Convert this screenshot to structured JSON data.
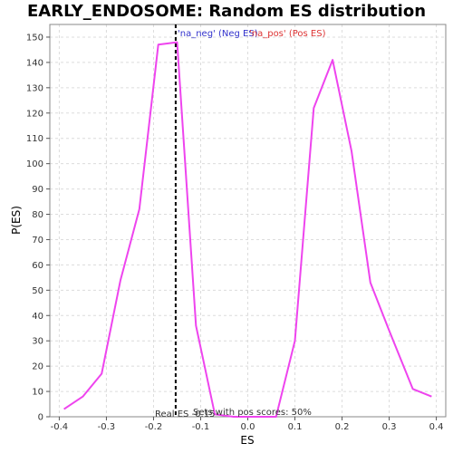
{
  "chart_data": {
    "type": "line",
    "title": "EARLY_ENDOSOME: Random ES distribution",
    "xlabel": "ES",
    "ylabel": "P(ES)",
    "xlim": [
      -0.42,
      0.42
    ],
    "ylim": [
      0,
      155
    ],
    "xticks": [
      -0.4,
      -0.3,
      -0.2,
      -0.1,
      0.0,
      0.1,
      0.2,
      0.3,
      0.4
    ],
    "xtick_labels": [
      "-0.4",
      "-0.3",
      "-0.2",
      "-0.1",
      "0.0",
      "0.1",
      "0.2",
      "0.3",
      "0.4"
    ],
    "yticks": [
      0,
      10,
      20,
      30,
      40,
      50,
      60,
      70,
      80,
      90,
      100,
      110,
      120,
      130,
      140,
      150
    ],
    "ytick_labels": [
      "0",
      "10",
      "20",
      "30",
      "40",
      "50",
      "60",
      "70",
      "80",
      "90",
      "100",
      "110",
      "120",
      "130",
      "140",
      "150"
    ],
    "grid": true,
    "series": [
      {
        "color": "#ee44ee",
        "x": [
          -0.39,
          -0.35,
          -0.31,
          -0.27,
          -0.23,
          -0.19,
          -0.15,
          -0.11,
          -0.07,
          -0.03,
          0.02,
          0.06,
          0.1,
          0.14,
          0.18,
          0.22,
          0.26,
          0.3,
          0.35,
          0.39
        ],
        "y": [
          3,
          8,
          17,
          54,
          82,
          147,
          148,
          36,
          1,
          0,
          0,
          0,
          30,
          122,
          141,
          105,
          53,
          34,
          11,
          8
        ]
      }
    ],
    "real_es": {
      "x": -0.153,
      "label": "Real ES -0.15",
      "color": "#000000"
    },
    "annotations": {
      "neg": {
        "text": "'na_neg' (Neg ES)",
        "color": "#3333cc"
      },
      "pos": {
        "text": "'na_pos' (Pos ES)",
        "color": "#dd3333"
      },
      "pos_scores": {
        "text": "Sets with pos scores: 50%",
        "color": "#333333"
      }
    }
  }
}
